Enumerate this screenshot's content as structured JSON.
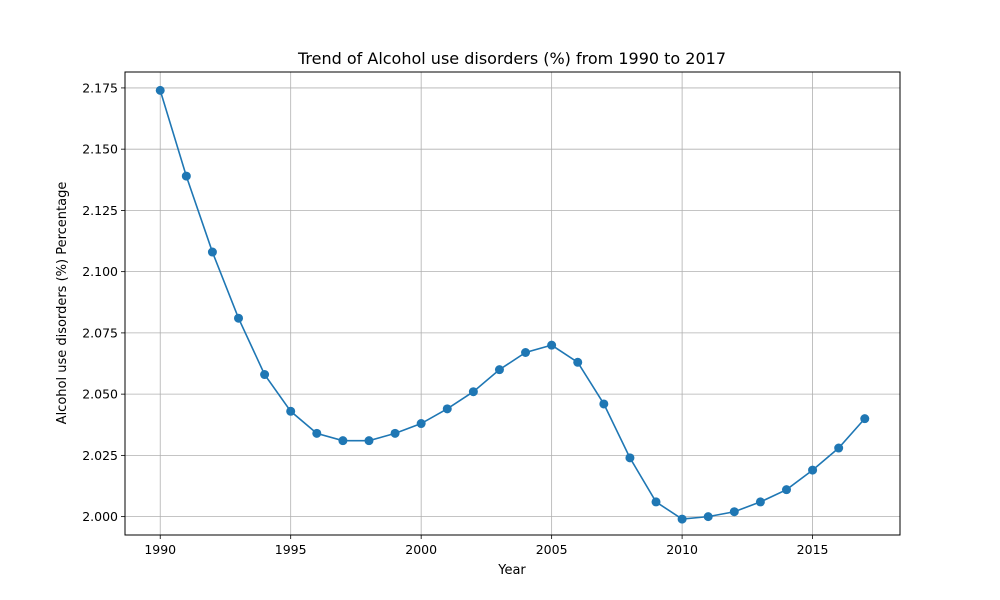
{
  "chart_data": {
    "type": "line",
    "title": "Trend of Alcohol use disorders (%) from 1990 to 2017",
    "xlabel": "Year",
    "ylabel": "Alcohol use disorders (%) Percentage",
    "xlim": [
      1988.65,
      2018.35
    ],
    "ylim": [
      1.9925,
      2.1815
    ],
    "xticks": [
      1990,
      1995,
      2000,
      2005,
      2010,
      2015
    ],
    "yticks": [
      2.0,
      2.025,
      2.05,
      2.075,
      2.1,
      2.125,
      2.15,
      2.175
    ],
    "ytick_labels": [
      "2.000",
      "2.025",
      "2.050",
      "2.075",
      "2.100",
      "2.125",
      "2.150",
      "2.175"
    ],
    "grid": true,
    "series": [
      {
        "color": "#1f77b4",
        "marker": "circle",
        "x": [
          1990,
          1991,
          1992,
          1993,
          1994,
          1995,
          1996,
          1997,
          1998,
          1999,
          2000,
          2001,
          2002,
          2003,
          2004,
          2005,
          2006,
          2007,
          2008,
          2009,
          2010,
          2011,
          2012,
          2013,
          2014,
          2015,
          2016,
          2017
        ],
        "y": [
          2.174,
          2.139,
          2.108,
          2.081,
          2.058,
          2.043,
          2.034,
          2.031,
          2.031,
          2.034,
          2.038,
          2.044,
          2.051,
          2.06,
          2.067,
          2.07,
          2.063,
          2.046,
          2.024,
          2.006,
          1.999,
          2.0,
          2.002,
          2.006,
          2.011,
          2.019,
          2.028,
          2.04
        ]
      }
    ]
  }
}
